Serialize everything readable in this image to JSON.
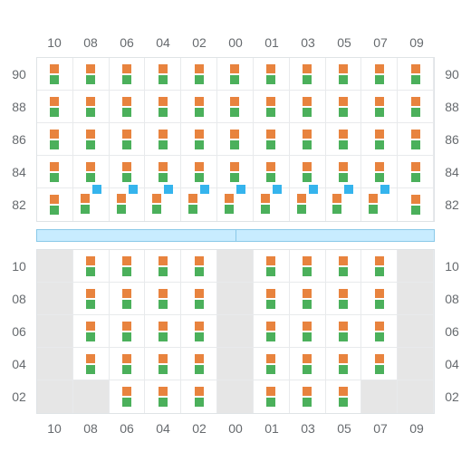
{
  "colors": {
    "orange": "#e8833e",
    "green": "#4bb05b",
    "blue": "#35b4ed",
    "blank_bg": "#e6e6e6",
    "grid_border": "#e8eaec",
    "section_border": "#dfe3e6",
    "label_color": "#666a6e",
    "divider_fill": "#c8ecff",
    "divider_border": "#8ac9e8"
  },
  "columns_top": [
    "10",
    "08",
    "06",
    "04",
    "02",
    "00",
    "01",
    "03",
    "05",
    "07",
    "09"
  ],
  "columns_bottom": [
    "10",
    "08",
    "06",
    "04",
    "02",
    "00",
    "01",
    "03",
    "05",
    "07",
    "09"
  ],
  "top_section": {
    "rows": [
      {
        "label": "90",
        "cells": [
          "og",
          "og",
          "og",
          "og",
          "og",
          "og",
          "og",
          "og",
          "og",
          "og",
          "og"
        ]
      },
      {
        "label": "88",
        "cells": [
          "og",
          "og",
          "og",
          "og",
          "og",
          "og",
          "og",
          "og",
          "og",
          "og",
          "og"
        ]
      },
      {
        "label": "86",
        "cells": [
          "og",
          "og",
          "og",
          "og",
          "og",
          "og",
          "og",
          "og",
          "og",
          "og",
          "og"
        ]
      },
      {
        "label": "84",
        "cells": [
          "og",
          "og",
          "og",
          "og",
          "og",
          "og",
          "og",
          "og",
          "og",
          "og",
          "og"
        ]
      },
      {
        "label": "82",
        "cells": [
          "og",
          "ogb",
          "ogb",
          "ogb",
          "ogb",
          "ogb",
          "ogb",
          "ogb",
          "ogb",
          "ogb",
          "og"
        ]
      }
    ]
  },
  "bottom_section": {
    "rows": [
      {
        "label": "10",
        "cells": [
          "blank",
          "og",
          "og",
          "og",
          "og",
          "blank",
          "og",
          "og",
          "og",
          "og",
          "blank"
        ]
      },
      {
        "label": "08",
        "cells": [
          "blank",
          "og",
          "og",
          "og",
          "og",
          "blank",
          "og",
          "og",
          "og",
          "og",
          "blank"
        ]
      },
      {
        "label": "06",
        "cells": [
          "blank",
          "og",
          "og",
          "og",
          "og",
          "blank",
          "og",
          "og",
          "og",
          "og",
          "blank"
        ]
      },
      {
        "label": "04",
        "cells": [
          "blank",
          "og",
          "og",
          "og",
          "og",
          "blank",
          "og",
          "og",
          "og",
          "og",
          "blank"
        ]
      },
      {
        "label": "02",
        "cells": [
          "blank",
          "blank",
          "og",
          "og",
          "og",
          "blank",
          "og",
          "og",
          "og",
          "blank",
          "blank"
        ]
      }
    ]
  }
}
